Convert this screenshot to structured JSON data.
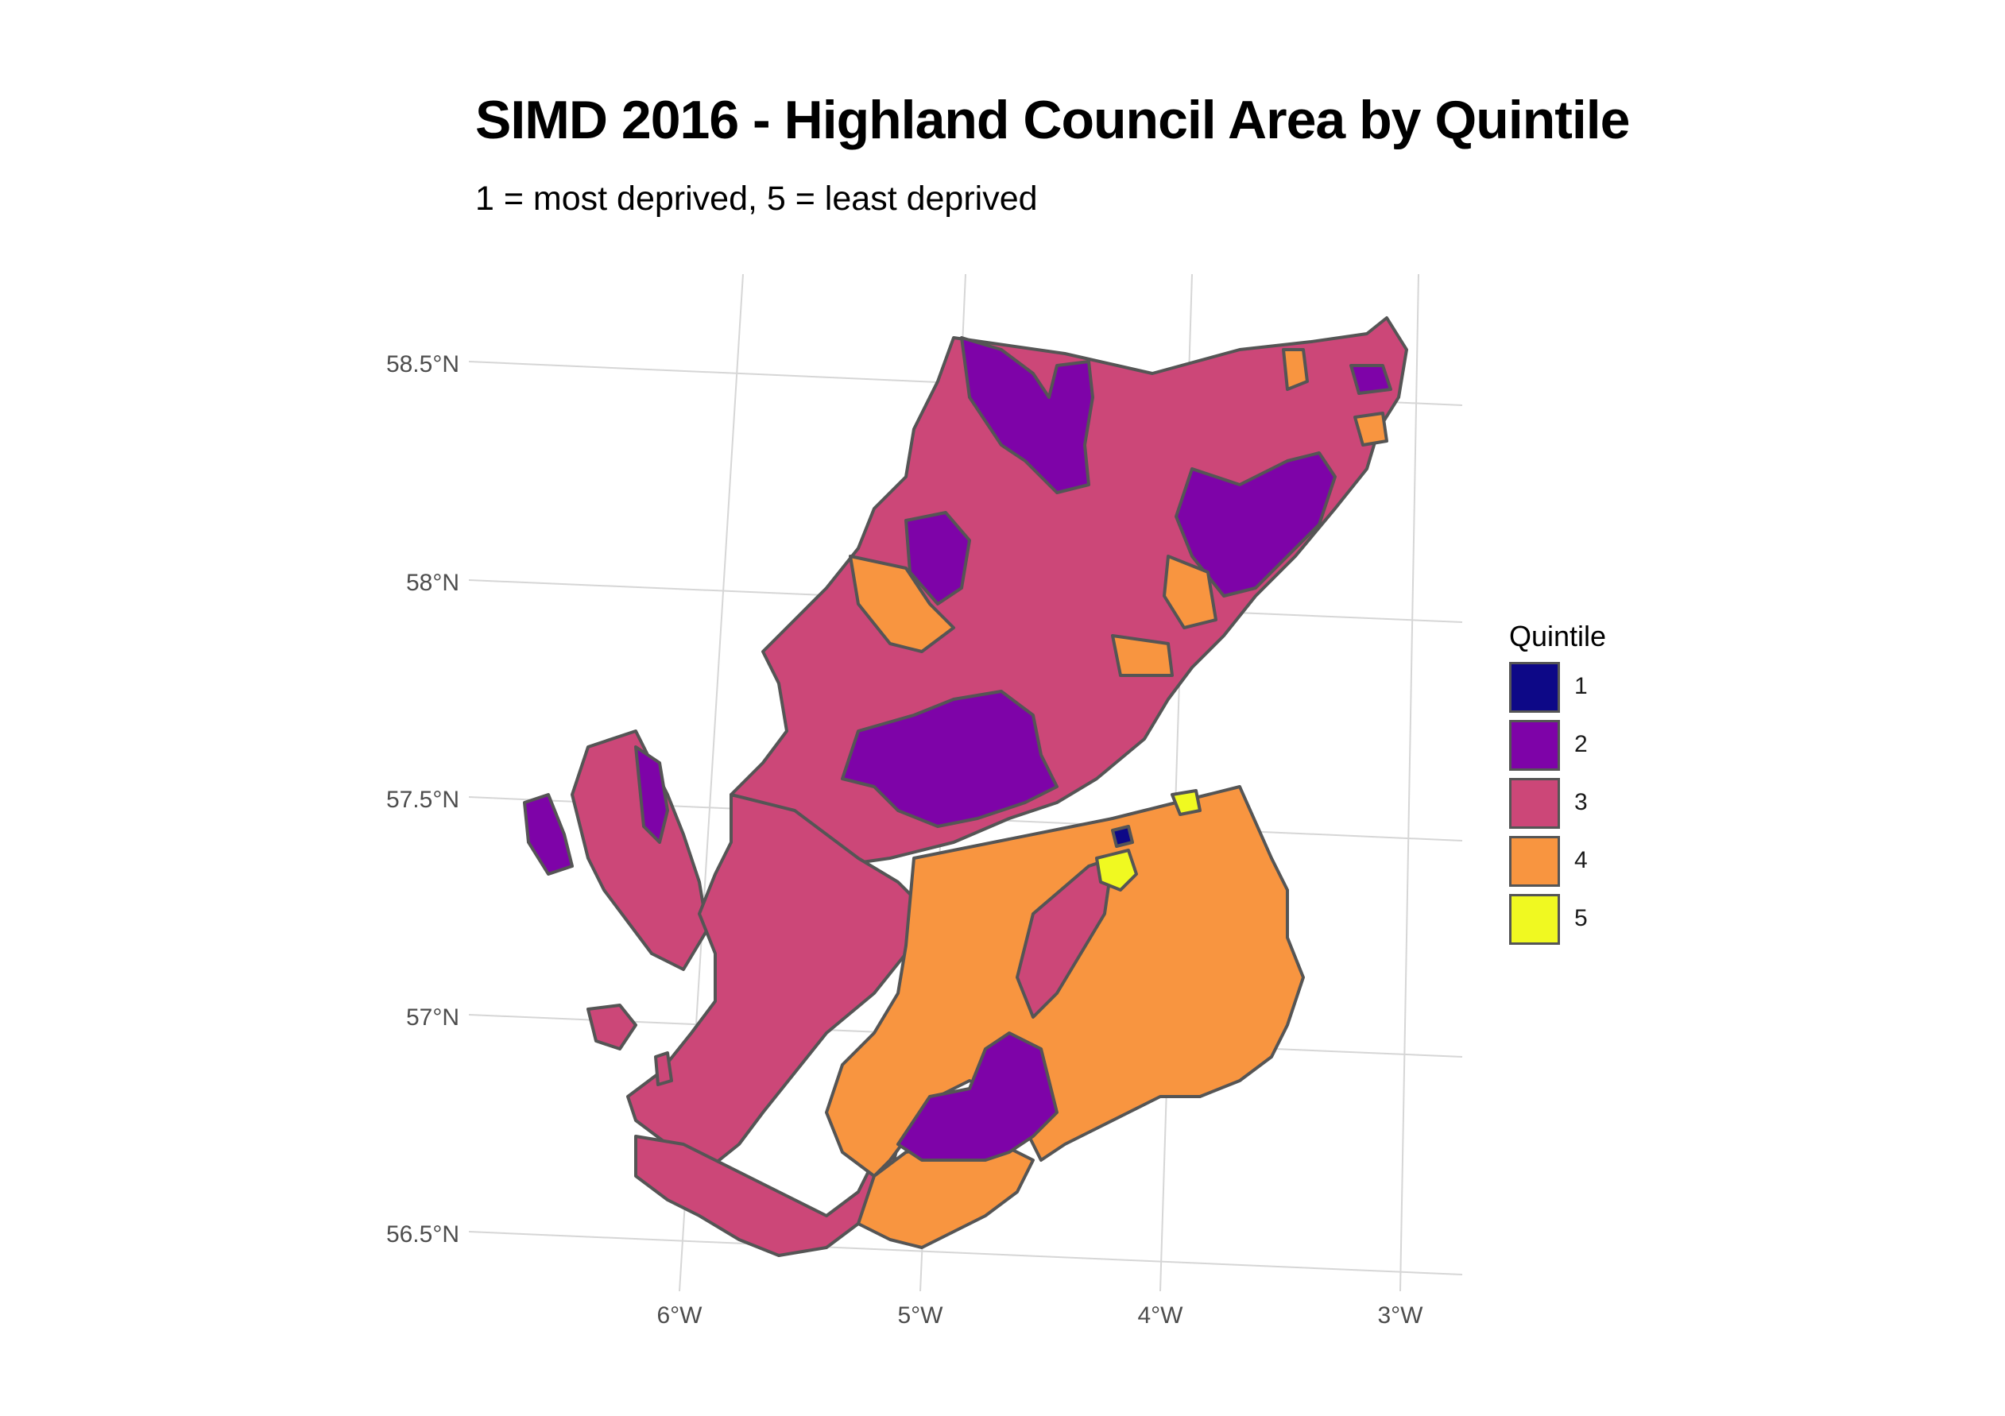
{
  "title": "SIMD 2016 - Highland Council Area by Quintile",
  "subtitle": "1 = most deprived, 5 = least deprived",
  "axes": {
    "latitude_labels": [
      "58.5°N",
      "58°N",
      "57.5°N",
      "57°N",
      "56.5°N"
    ],
    "longitude_labels": [
      "6°W",
      "5°W",
      "4°W",
      "3°W"
    ]
  },
  "legend": {
    "title": "Quintile",
    "position": "right",
    "items": [
      {
        "label": "1",
        "color": "#0D0887"
      },
      {
        "label": "2",
        "color": "#7E03A8"
      },
      {
        "label": "3",
        "color": "#CC4778"
      },
      {
        "label": "4",
        "color": "#F89540"
      },
      {
        "label": "5",
        "color": "#F0F921"
      }
    ]
  },
  "map": {
    "region": "Highland Council Area",
    "fill_by": "Quintile",
    "border_color": "#555555"
  }
}
